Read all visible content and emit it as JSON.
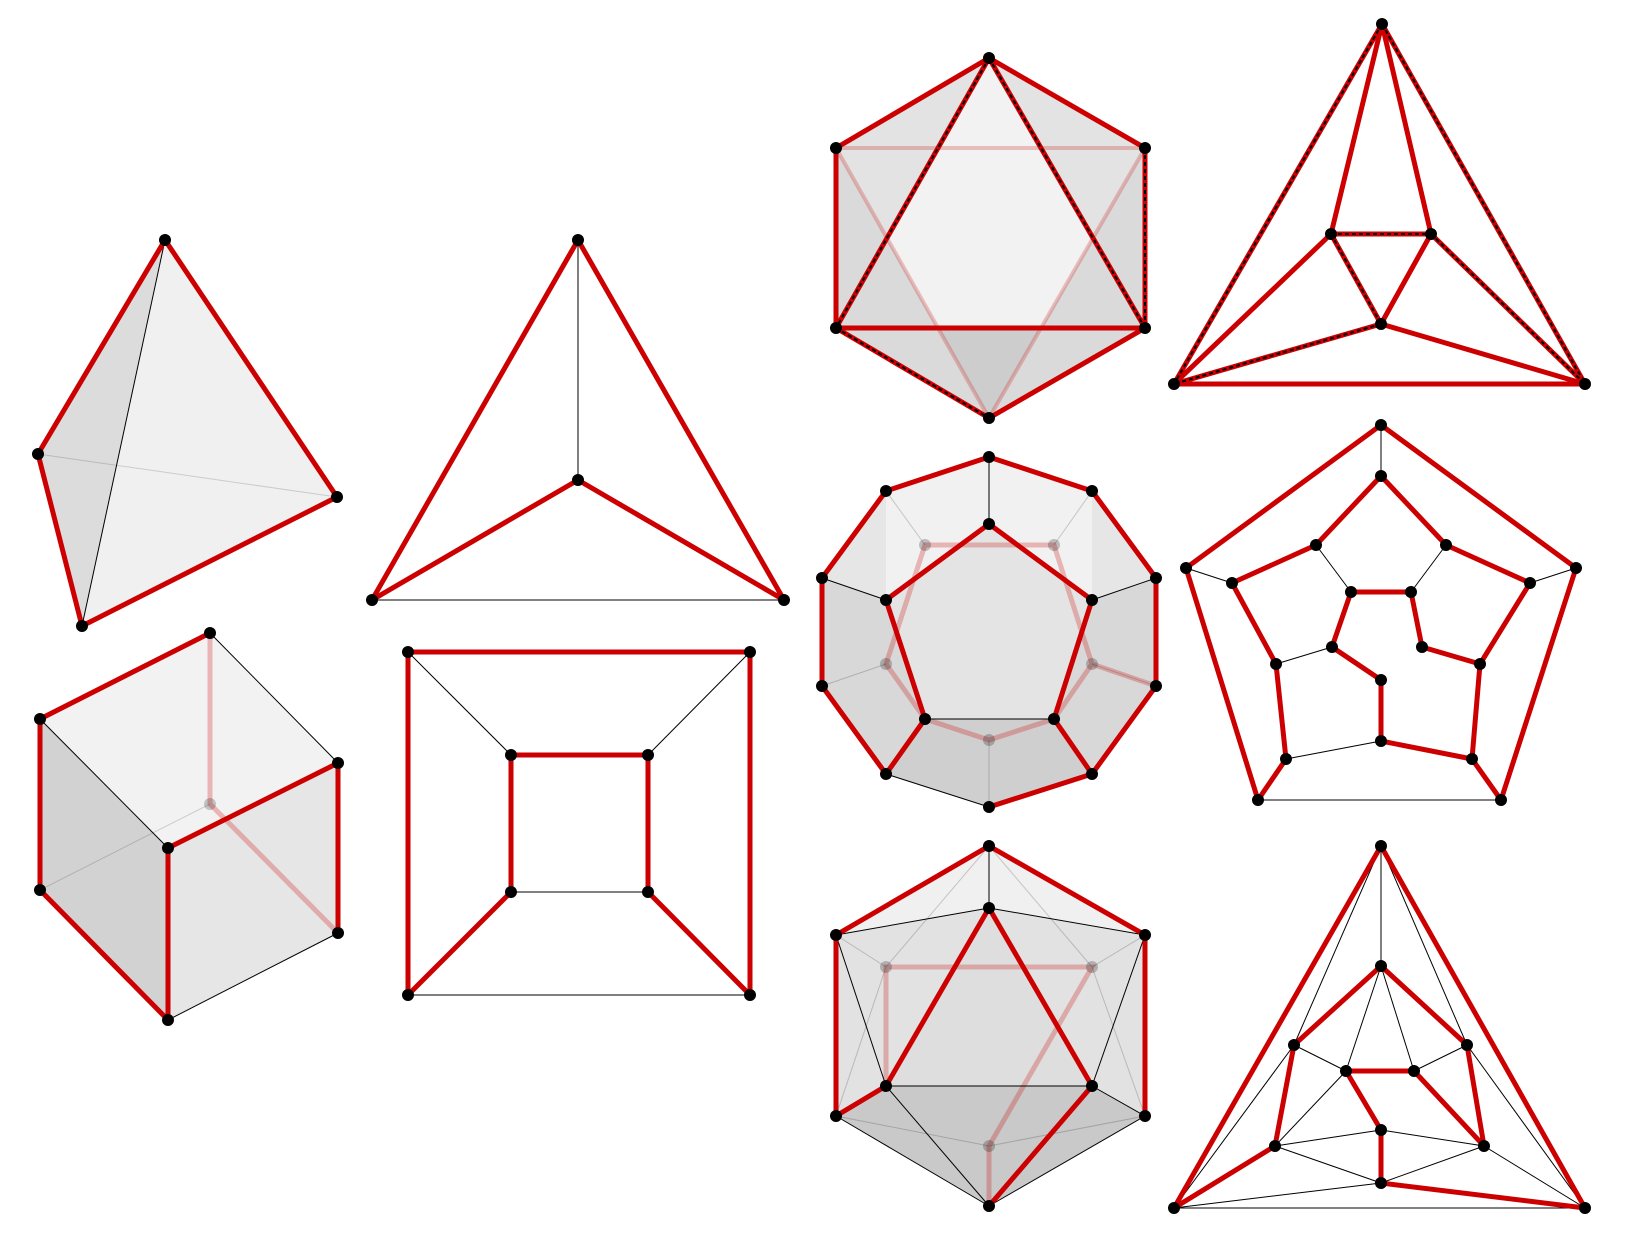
{
  "colors": {
    "background": "#ffffff",
    "hamiltonian_edge": "#cc0000",
    "plain_edge": "#000000",
    "vertex": "#000000",
    "face_light": "#f1f1f1",
    "face_mid": "#e3e3e3",
    "face_dark": "#cfcfcf"
  },
  "diagrams": [
    {
      "id": "tetrahedron-3d",
      "kind": "solid",
      "vertices": 4,
      "edges": 6
    },
    {
      "id": "tetrahedron-schlegel",
      "kind": "schlegel",
      "vertices": 4,
      "edges": 6
    },
    {
      "id": "octahedron-3d",
      "kind": "solid",
      "vertices": 6,
      "edges": 12
    },
    {
      "id": "octahedron-schlegel",
      "kind": "schlegel",
      "vertices": 6,
      "edges": 12
    },
    {
      "id": "cube-3d",
      "kind": "solid",
      "vertices": 8,
      "edges": 12
    },
    {
      "id": "cube-schlegel",
      "kind": "schlegel",
      "vertices": 8,
      "edges": 12
    },
    {
      "id": "dodecahedron-3d",
      "kind": "solid",
      "vertices": 20,
      "edges": 30
    },
    {
      "id": "dodecahedron-schlegel",
      "kind": "schlegel",
      "vertices": 20,
      "edges": 30
    },
    {
      "id": "icosahedron-3d",
      "kind": "solid",
      "vertices": 12,
      "edges": 30
    },
    {
      "id": "icosahedron-schlegel",
      "kind": "schlegel",
      "vertices": 12,
      "edges": 30
    }
  ]
}
